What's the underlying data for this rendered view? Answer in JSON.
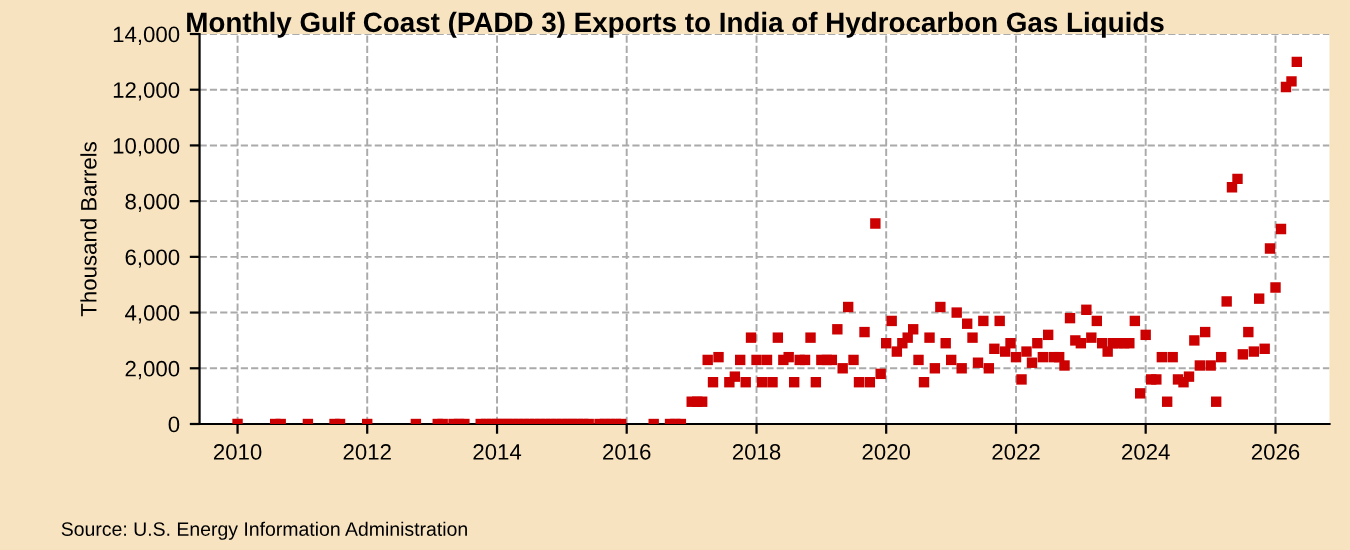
{
  "chart_data": {
    "type": "scatter",
    "title": "Monthly Gulf Coast (PADD 3) Exports to India of Hydrocarbon Gas Liquids",
    "ylabel": "Thousand Barrels",
    "annotations": [
      "Source: U.S. Energy Information Administration"
    ],
    "x": [
      "2010-01",
      "2010-08",
      "2010-09",
      "2011-02",
      "2011-07",
      "2011-08",
      "2012-01",
      "2012-10",
      "2013-02",
      "2013-03",
      "2013-05",
      "2013-06",
      "2013-07",
      "2013-10",
      "2013-11",
      "2013-12",
      "2014-01",
      "2014-02",
      "2014-03",
      "2014-04",
      "2014-05",
      "2014-06",
      "2014-07",
      "2014-08",
      "2014-09",
      "2014-10",
      "2014-11",
      "2014-12",
      "2015-01",
      "2015-02",
      "2015-03",
      "2015-04",
      "2015-05",
      "2015-06",
      "2015-08",
      "2015-09",
      "2015-10",
      "2015-11",
      "2015-12",
      "2016-06",
      "2016-09",
      "2016-10",
      "2016-11",
      "2017-01",
      "2017-02",
      "2017-03",
      "2017-04",
      "2017-05",
      "2017-06",
      "2017-08",
      "2017-09",
      "2017-10",
      "2017-11",
      "2017-12",
      "2018-01",
      "2018-02",
      "2018-03",
      "2018-04",
      "2018-05",
      "2018-06",
      "2018-07",
      "2018-08",
      "2018-09",
      "2018-10",
      "2018-11",
      "2018-12",
      "2019-01",
      "2019-02",
      "2019-03",
      "2019-04",
      "2019-05",
      "2019-06",
      "2019-07",
      "2019-08",
      "2019-09",
      "2019-10",
      "2019-11",
      "2019-12",
      "2020-01",
      "2020-02",
      "2020-03",
      "2020-04",
      "2020-05",
      "2020-06",
      "2020-07",
      "2020-08",
      "2020-09",
      "2020-10",
      "2020-11",
      "2020-12",
      "2021-01",
      "2021-02",
      "2021-03",
      "2021-04",
      "2021-05",
      "2021-06",
      "2021-07",
      "2021-08",
      "2021-09",
      "2021-10",
      "2021-11",
      "2021-12",
      "2022-01",
      "2022-02",
      "2022-03",
      "2022-04",
      "2022-05",
      "2022-06",
      "2022-07",
      "2022-08",
      "2022-09",
      "2022-10",
      "2022-11",
      "2022-12",
      "2023-01",
      "2023-02",
      "2023-03",
      "2023-04",
      "2023-05",
      "2023-06",
      "2023-07",
      "2023-08",
      "2023-09",
      "2023-10",
      "2023-11",
      "2023-12",
      "2024-01",
      "2024-02",
      "2024-03",
      "2024-04",
      "2024-05",
      "2024-06",
      "2024-07",
      "2024-08",
      "2024-09",
      "2024-10",
      "2024-11",
      "2024-12",
      "2025-01",
      "2025-02",
      "2025-03",
      "2025-04",
      "2025-05",
      "2025-06",
      "2025-07",
      "2025-08",
      "2025-09",
      "2025-10",
      "2025-11",
      "2025-12",
      "2026-01",
      "2026-02",
      "2026-03",
      "2026-04",
      "2026-05"
    ],
    "series": [
      {
        "color": "#cc0000",
        "values": [
          0,
          0,
          0,
          0,
          0,
          0,
          0,
          0,
          0,
          0,
          0,
          0,
          0,
          0,
          0,
          0,
          0,
          0,
          0,
          0,
          0,
          0,
          0,
          0,
          0,
          0,
          0,
          0,
          0,
          0,
          0,
          0,
          0,
          0,
          0,
          0,
          0,
          0,
          0,
          0,
          0,
          0,
          0,
          800,
          800,
          800,
          2300,
          1500,
          2400,
          1500,
          1700,
          2300,
          1500,
          3100,
          2300,
          1500,
          2300,
          1500,
          3100,
          2300,
          2400,
          1500,
          2300,
          2300,
          3100,
          1500,
          2300,
          2300,
          2300,
          3400,
          2000,
          4200,
          2300,
          1500,
          3300,
          1500,
          7200,
          1800,
          2900,
          3700,
          2600,
          2900,
          3100,
          3400,
          2300,
          1500,
          3100,
          2000,
          4200,
          2900,
          2300,
          4000,
          2000,
          3600,
          3100,
          2200,
          3700,
          2000,
          2700,
          3700,
          2600,
          2900,
          2400,
          1600,
          2600,
          2200,
          2900,
          2400,
          3200,
          2400,
          2400,
          2100,
          3800,
          3000,
          2900,
          4100,
          3100,
          3700,
          2900,
          2600,
          2900,
          2900,
          2900,
          2900,
          3700,
          1100,
          3200,
          1600,
          1600,
          2400,
          800,
          2400,
          1600,
          1500,
          1700,
          3000,
          2100,
          3300,
          2100,
          800,
          2400,
          4400,
          8500,
          8800,
          2500,
          3300,
          2600,
          4500,
          2700,
          6300,
          4900,
          7000,
          12100,
          12300,
          13000
        ]
      }
    ],
    "xlim": [
      "2009-06",
      "2026-11"
    ],
    "xticks": [
      {
        "value": "2010",
        "label": "2010"
      },
      {
        "value": "2012",
        "label": "2012"
      },
      {
        "value": "2014",
        "label": "2014"
      },
      {
        "value": "2016",
        "label": "2016"
      },
      {
        "value": "2018",
        "label": "2018"
      },
      {
        "value": "2020",
        "label": "2020"
      },
      {
        "value": "2022",
        "label": "2022"
      },
      {
        "value": "2024",
        "label": "2024"
      },
      {
        "value": "2026",
        "label": "2026"
      }
    ],
    "ylim": [
      0,
      14000
    ],
    "yticks": [
      {
        "value": 0,
        "label": "0"
      },
      {
        "value": 2000,
        "label": "2,000"
      },
      {
        "value": 4000,
        "label": "4,000"
      },
      {
        "value": 6000,
        "label": "6,000"
      },
      {
        "value": 8000,
        "label": "8,000"
      },
      {
        "value": 10000,
        "label": "10,000"
      },
      {
        "value": 12000,
        "label": "12,000"
      },
      {
        "value": 14000,
        "label": "14,000"
      }
    ],
    "grid": true,
    "marker": "square",
    "legend": false
  }
}
